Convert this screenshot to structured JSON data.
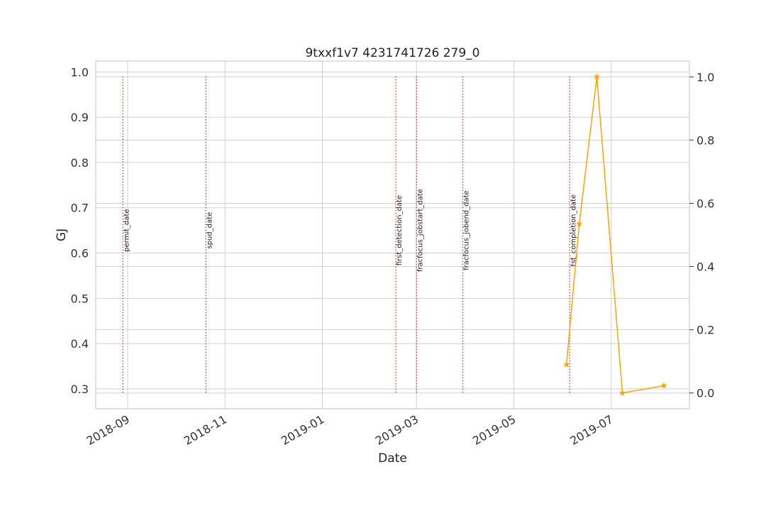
{
  "chart_data": {
    "type": "line",
    "title": "9txxf1v7 4231741726 279_0",
    "xlabel": "Date",
    "ylabel_left": "GJ",
    "ylabel_left_color": "#1f77b4",
    "x_axis": {
      "type": "date",
      "range": [
        "2018-08-12",
        "2019-08-19"
      ],
      "ticks": [
        "2018-09-01",
        "2018-11-01",
        "2019-01-01",
        "2019-03-01",
        "2019-05-01",
        "2019-07-01"
      ],
      "tick_labels": [
        "2018-09",
        "2018-11",
        "2019-01",
        "2019-03",
        "2019-05",
        "2019-07"
      ]
    },
    "y_left": {
      "range": [
        0.256,
        1.024
      ],
      "ticks": [
        0.3,
        0.4,
        0.5,
        0.6,
        0.7,
        0.8,
        0.9,
        1.0
      ],
      "tick_labels": [
        "0.3",
        "0.4",
        "0.5",
        "0.6",
        "0.7",
        "0.8",
        "0.9",
        "1.0"
      ]
    },
    "y_right": {
      "range": [
        -0.05,
        1.05
      ],
      "ticks": [
        0.0,
        0.2,
        0.4,
        0.6,
        0.8,
        1.0
      ],
      "tick_labels": [
        "0.0",
        "0.2",
        "0.4",
        "0.6",
        "0.8",
        "1.0"
      ]
    },
    "grid": true,
    "event_lines": [
      {
        "label": "permit_date",
        "date": "2018-08-29"
      },
      {
        "label": "spud_date",
        "date": "2018-10-20"
      },
      {
        "label": "first_detection_date",
        "date": "2019-02-16"
      },
      {
        "label": "fracfocus_jobstart_date",
        "date": "2019-03-01"
      },
      {
        "label": "fracfocus_jobend_date",
        "date": "2019-03-30"
      },
      {
        "label": "tst_completion_date",
        "date": "2019-06-05"
      }
    ],
    "event_line_color": "#c0392b",
    "series": [
      {
        "axis": "right",
        "color": "#ffa500",
        "marker": "star",
        "x": [
          "2019-06-03",
          "2019-06-11",
          "2019-06-22",
          "2019-07-08",
          "2019-08-03"
        ],
        "y": [
          0.09,
          0.535,
          1.0,
          0.0,
          0.023
        ]
      }
    ]
  }
}
